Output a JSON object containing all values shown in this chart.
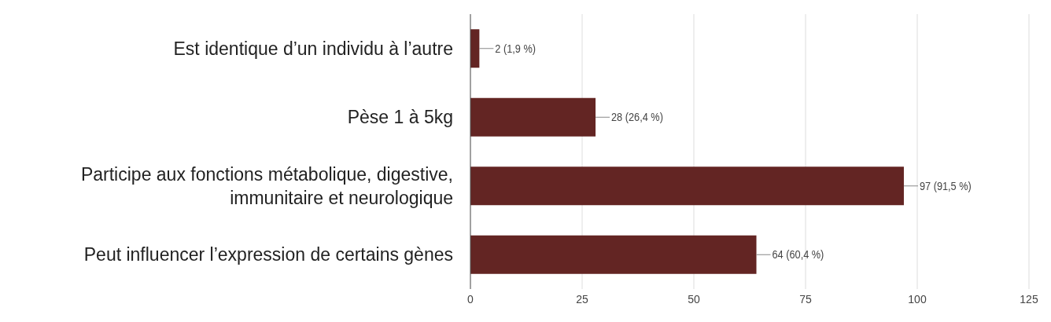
{
  "chart_data": {
    "type": "bar",
    "orientation": "horizontal",
    "categories": [
      "Est identique d’un individu à l’autre",
      "Pèse 1 à 5kg",
      "Participe aux fonctions métabolique, digestive, immunitaire et neurologique",
      "Peut influencer l’expression de certains gènes"
    ],
    "values": [
      2,
      28,
      97,
      64
    ],
    "value_labels": [
      "2 (1,9 %)",
      "28 (26,4 %)",
      "97 (91,5 %)",
      "64 (60,4 %)"
    ],
    "color": "#632523",
    "xlim": [
      0,
      125
    ],
    "xticks": [
      0,
      25,
      50,
      75,
      100,
      125
    ],
    "grid": "x"
  }
}
